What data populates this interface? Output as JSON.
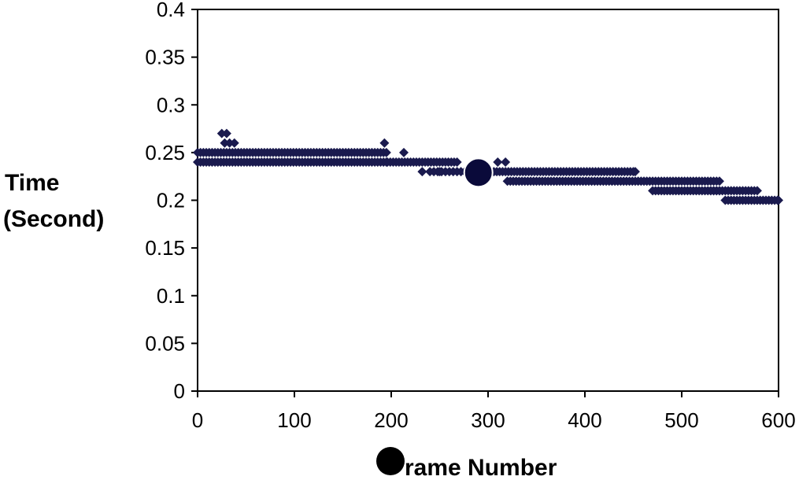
{
  "chart_data": {
    "type": "scatter",
    "title": "",
    "xlabel": "rame Number",
    "ylabel_lines": [
      "Time",
      "(Second)"
    ],
    "xlim": [
      0,
      600
    ],
    "ylim": [
      0,
      0.4
    ],
    "x_ticks": [
      "0",
      "100",
      "200",
      "300",
      "400",
      "500",
      "600"
    ],
    "y_ticks": [
      "0",
      "0.05",
      "0.1",
      "0.15",
      "0.2",
      "0.25",
      "0.3",
      "0.35",
      "0.4"
    ],
    "grid": false,
    "legend": "none",
    "marker_color": "#1a1a4e",
    "marker_shape": "diamond",
    "series": [
      {
        "segments": [
          {
            "x_start": 0,
            "x_end": 195,
            "step": 3,
            "y_values": [
              0.24,
              0.25
            ]
          },
          {
            "x_start": 196,
            "x_end": 270,
            "step": 3,
            "y_values": [
              0.24
            ]
          },
          {
            "x_start": 240,
            "x_end": 300,
            "step": 4,
            "y_values": [
              0.23
            ]
          },
          {
            "x_start": 300,
            "x_end": 450,
            "step": 3,
            "y_values": [
              0.23
            ]
          },
          {
            "x_start": 320,
            "x_end": 540,
            "step": 3,
            "y_values": [
              0.22
            ]
          },
          {
            "x_start": 470,
            "x_end": 540,
            "step": 3,
            "y_values": [
              0.21
            ]
          },
          {
            "x_start": 530,
            "x_end": 580,
            "step": 3,
            "y_values": [
              0.21
            ]
          },
          {
            "x_start": 545,
            "x_end": 600,
            "step": 3,
            "y_values": [
              0.2
            ]
          }
        ],
        "points": [
          {
            "x": 25,
            "y": 0.27
          },
          {
            "x": 30,
            "y": 0.27
          },
          {
            "x": 28,
            "y": 0.26
          },
          {
            "x": 33,
            "y": 0.26
          },
          {
            "x": 38,
            "y": 0.26
          },
          {
            "x": 193,
            "y": 0.26
          },
          {
            "x": 213,
            "y": 0.25
          },
          {
            "x": 232,
            "y": 0.23
          },
          {
            "x": 250,
            "y": 0.23
          },
          {
            "x": 310,
            "y": 0.24
          },
          {
            "x": 318,
            "y": 0.24
          },
          {
            "x": 452,
            "y": 0.23
          },
          {
            "x": 600,
            "y": 0.2
          }
        ]
      }
    ],
    "highlight_marker": {
      "x": 290,
      "y": 0.229
    }
  }
}
